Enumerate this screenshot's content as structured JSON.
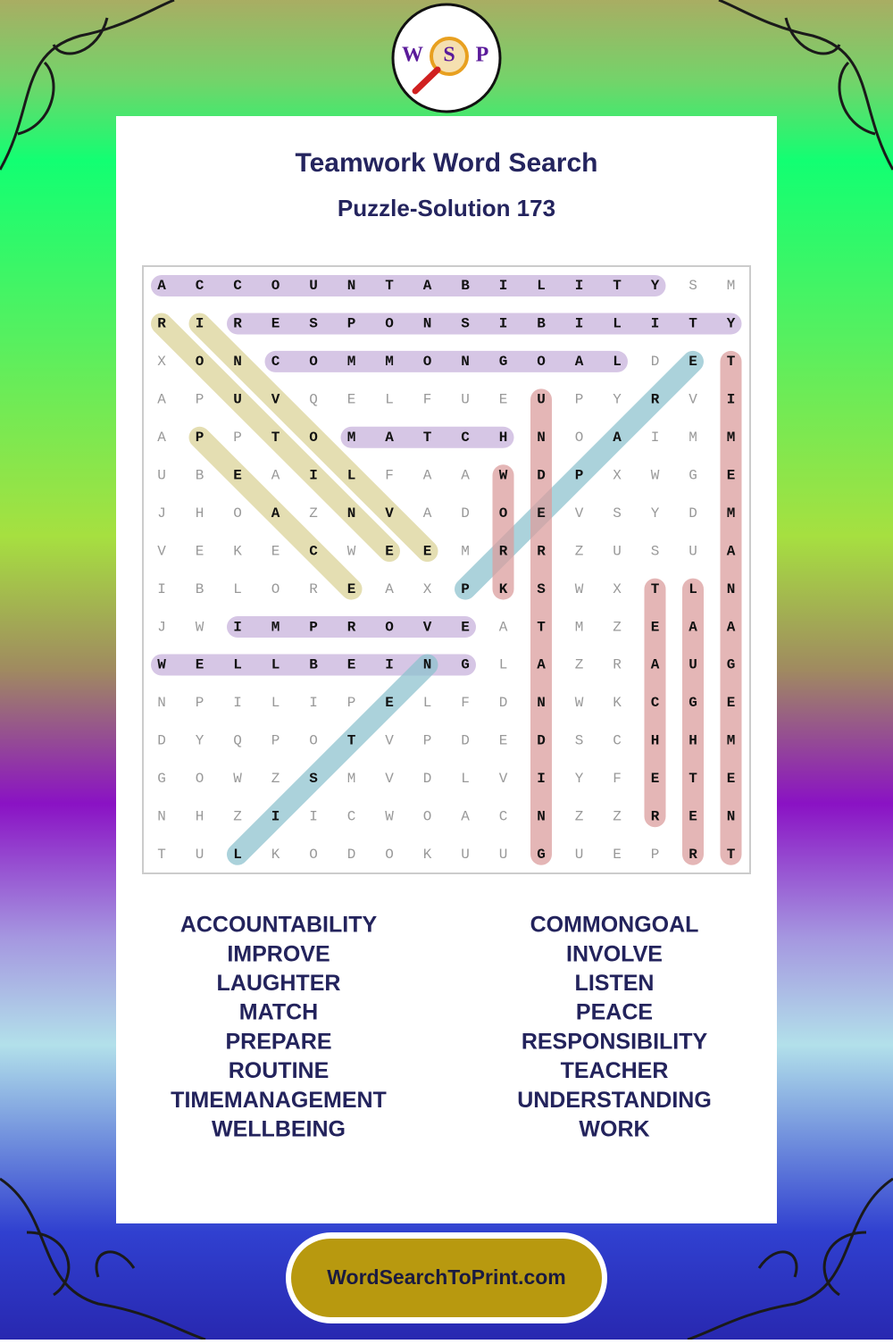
{
  "logo": {
    "letters": [
      "W",
      "S",
      "P"
    ]
  },
  "header": {
    "title": "Teamwork Word Search",
    "subtitle": "Puzzle-Solution 173"
  },
  "grid": [
    "ACCOUNTABILITYSM",
    "RIRESPONSIBILITY",
    "XONCOMMONGOALDET",
    "APUVQELFUEUPYRVI",
    "APPTOMATCHNOAIMM",
    "UBEAILFAAWDPXWGE",
    "JHOAZNVADOEVSYDM",
    "VEKECWEEMRRZUSUA",
    "IBLOREAXPKSWXTLN",
    "JWIMPROVEATMZEAA",
    "WELLBEINGLAZRAUG",
    "NPILIPELFDNWKCGE",
    "DYQPOTVPDEDSCHHM",
    "GOWZSMVDLVIYFETE",
    "NHZIICWOACNZZREN",
    "TULKODOKUUGUEPRT"
  ],
  "highlights": [
    {
      "start": [
        0,
        0
      ],
      "end": [
        0,
        13
      ],
      "color": "#c9b3dd"
    },
    {
      "start": [
        1,
        2
      ],
      "end": [
        1,
        15
      ],
      "color": "#c9b3dd"
    },
    {
      "start": [
        2,
        3
      ],
      "end": [
        2,
        12
      ],
      "color": "#c9b3dd"
    },
    {
      "start": [
        4,
        5
      ],
      "end": [
        4,
        9
      ],
      "color": "#c9b3dd"
    },
    {
      "start": [
        9,
        2
      ],
      "end": [
        9,
        8
      ],
      "color": "#c9b3dd"
    },
    {
      "start": [
        10,
        0
      ],
      "end": [
        10,
        8
      ],
      "color": "#c9b3dd"
    },
    {
      "start": [
        1,
        0
      ],
      "end": [
        7,
        6
      ],
      "color": "#dcd499"
    },
    {
      "start": [
        1,
        1
      ],
      "end": [
        7,
        7
      ],
      "color": "#dcd499"
    },
    {
      "start": [
        4,
        1
      ],
      "end": [
        8,
        5
      ],
      "color": "#dcd499"
    },
    {
      "start": [
        15,
        2
      ],
      "end": [
        10,
        7
      ],
      "color": "#8fc3cf"
    },
    {
      "start": [
        8,
        8
      ],
      "end": [
        2,
        14
      ],
      "color": "#8fc3cf"
    },
    {
      "start": [
        5,
        9
      ],
      "end": [
        8,
        9
      ],
      "color": "#dc9e9e"
    },
    {
      "start": [
        3,
        10
      ],
      "end": [
        15,
        10
      ],
      "color": "#dc9e9e"
    },
    {
      "start": [
        8,
        13
      ],
      "end": [
        14,
        13
      ],
      "color": "#dc9e9e"
    },
    {
      "start": [
        8,
        14
      ],
      "end": [
        15,
        14
      ],
      "color": "#dc9e9e"
    },
    {
      "start": [
        2,
        15
      ],
      "end": [
        15,
        15
      ],
      "color": "#dc9e9e"
    }
  ],
  "words": [
    [
      "ACCOUNTABILITY",
      "IMPROVE",
      "LAUGHTER",
      "MATCH",
      "PREPARE",
      "ROUTINE",
      "TIMEMANAGEMENT",
      "WELLBEING"
    ],
    [
      "COMMONGOAL",
      "INVOLVE",
      "LISTEN",
      "PEACE",
      "RESPONSIBILITY",
      "TEACHER",
      "UNDERSTANDING",
      "WORK"
    ]
  ],
  "footer": {
    "button": "WordSearchToPrint.com"
  }
}
